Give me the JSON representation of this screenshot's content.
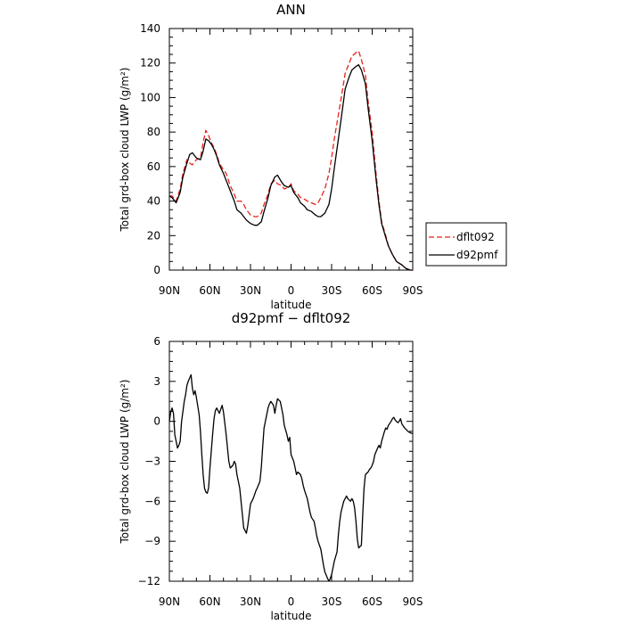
{
  "chart_data": [
    {
      "type": "line",
      "title": "ANN",
      "xlabel": "latitude",
      "ylabel": "Total grd-box cloud LWP (g/m²)",
      "xlim": [
        90,
        -90
      ],
      "ylim": [
        0,
        140
      ],
      "xticks": [
        90,
        60,
        30,
        0,
        -30,
        -60,
        -90
      ],
      "xtick_labels": [
        "90N",
        "60N",
        "30N",
        "0",
        "30S",
        "60S",
        "90S"
      ],
      "yticks": [
        0,
        20,
        40,
        60,
        80,
        100,
        120,
        140
      ],
      "ytick_labels": [
        "0",
        "20",
        "40",
        "60",
        "80",
        "100",
        "120",
        "140"
      ],
      "legend": "right",
      "series": [
        {
          "name": "dflt092",
          "color": "#e8201c",
          "dash": "dashed",
          "x": [
            90,
            88,
            85,
            82,
            80,
            77,
            75,
            73,
            70,
            67,
            65,
            63,
            61,
            59,
            57,
            55,
            53,
            50,
            48,
            45,
            42,
            40,
            37,
            35,
            33,
            30,
            27,
            25,
            22,
            20,
            17,
            15,
            12,
            10,
            7,
            5,
            2,
            0,
            -2,
            -5,
            -7,
            -10,
            -12,
            -15,
            -18,
            -20,
            -22,
            -25,
            -28,
            -30,
            -32,
            -35,
            -38,
            -40,
            -43,
            -45,
            -48,
            -50,
            -52,
            -55,
            -57,
            -60,
            -63,
            -65,
            -67,
            -70,
            -72,
            -75,
            -78,
            -80,
            -82,
            -85,
            -88,
            -90
          ],
          "y": [
            43,
            43,
            40,
            47,
            56,
            64,
            62,
            61,
            64,
            65,
            74,
            81,
            78,
            74,
            71,
            67,
            62,
            58,
            56,
            49,
            44,
            40,
            40,
            38,
            35,
            32,
            31,
            31,
            33,
            38,
            44,
            50,
            52,
            50,
            49,
            47,
            48,
            50,
            46,
            44,
            42,
            41,
            40,
            39,
            38,
            39,
            42,
            47,
            56,
            65,
            76,
            90,
            104,
            114,
            120,
            124,
            126,
            127,
            122,
            113,
            98,
            80,
            55,
            40,
            28,
            20,
            14,
            9,
            5,
            4,
            3,
            1,
            0,
            0
          ]
        },
        {
          "name": "d92pmf",
          "color": "#000000",
          "dash": "solid",
          "x": [
            90,
            88,
            85,
            82,
            80,
            77,
            75,
            73,
            70,
            67,
            65,
            63,
            61,
            59,
            57,
            55,
            53,
            50,
            48,
            45,
            42,
            40,
            37,
            35,
            33,
            30,
            27,
            25,
            22,
            20,
            17,
            15,
            12,
            10,
            7,
            5,
            2,
            0,
            -2,
            -5,
            -7,
            -10,
            -12,
            -15,
            -18,
            -20,
            -22,
            -25,
            -28,
            -30,
            -32,
            -35,
            -38,
            -40,
            -43,
            -45,
            -48,
            -50,
            -52,
            -55,
            -57,
            -60,
            -63,
            -65,
            -67,
            -70,
            -72,
            -75,
            -78,
            -80,
            -82,
            -85,
            -88,
            -90
          ],
          "y": [
            43,
            42,
            39,
            45,
            54,
            62,
            67,
            68,
            65,
            64,
            69,
            76,
            75,
            73,
            70,
            66,
            61,
            56,
            52,
            46,
            40,
            35,
            33,
            31,
            29,
            27,
            26,
            26,
            28,
            34,
            42,
            49,
            54,
            55,
            51,
            49,
            48,
            49,
            45,
            42,
            39,
            37,
            35,
            34,
            32,
            31,
            31,
            33,
            38,
            47,
            59,
            76,
            93,
            105,
            112,
            116,
            118,
            119,
            116,
            108,
            94,
            75,
            52,
            38,
            27,
            19,
            14,
            9,
            5,
            4,
            3,
            1,
            0,
            0
          ]
        }
      ]
    },
    {
      "type": "line",
      "title": "d92pmf − dflt092",
      "xlabel": "latitude",
      "ylabel": "Total grd-box cloud LWP (g/m²)",
      "xlim": [
        90,
        -90
      ],
      "ylim": [
        -12,
        6
      ],
      "xticks": [
        90,
        60,
        30,
        0,
        -30,
        -60,
        -90
      ],
      "xtick_labels": [
        "90N",
        "60N",
        "30N",
        "0",
        "30S",
        "60S",
        "90S"
      ],
      "yticks": [
        -12,
        -9,
        -6,
        -3,
        0,
        3,
        6
      ],
      "ytick_labels": [
        "−12",
        "−9",
        "−6",
        "−3",
        "0",
        "3",
        "6"
      ],
      "series": [
        {
          "color": "#000000",
          "dash": "solid",
          "x": [
            90,
            89,
            88,
            87,
            86,
            84,
            83,
            82,
            81,
            79,
            78,
            77,
            76,
            74,
            73,
            72,
            71,
            70,
            68,
            67,
            66,
            65,
            64,
            63,
            62,
            61,
            60,
            58,
            57,
            56,
            55,
            53,
            52,
            51,
            50,
            48,
            47,
            46,
            45,
            43,
            42,
            41,
            40,
            38,
            37,
            36,
            35,
            33,
            32,
            31,
            30,
            28,
            27,
            26,
            25,
            23,
            22,
            21,
            20,
            18,
            17,
            16,
            15,
            13,
            12,
            11,
            10,
            8,
            7,
            6,
            5,
            3,
            2,
            1,
            0,
            -2,
            -3,
            -4,
            -5,
            -7,
            -8,
            -9,
            -10,
            -12,
            -13,
            -14,
            -15,
            -17,
            -18,
            -19,
            -20,
            -22,
            -23,
            -24,
            -25,
            -27,
            -28,
            -29,
            -30,
            -31,
            -32,
            -34,
            -35,
            -36,
            -37,
            -39,
            -40,
            -41,
            -42,
            -44,
            -45,
            -46,
            -47,
            -48,
            -49,
            -50,
            -52,
            -53,
            -54,
            -55,
            -57,
            -58,
            -59,
            -60,
            -61,
            -62,
            -64,
            -65,
            -66,
            -67,
            -69,
            -70,
            -71,
            -72,
            -74,
            -75,
            -76,
            -77,
            -79,
            -80,
            -81,
            -82,
            -84,
            -85,
            -86,
            -87,
            -89,
            -90
          ],
          "y": [
            0.0,
            0.7,
            1.0,
            0.6,
            -1.0,
            -2.0,
            -1.8,
            -1.5,
            0.0,
            1.5,
            2.0,
            2.7,
            3.0,
            3.5,
            2.5,
            2.0,
            2.3,
            1.8,
            0.5,
            -0.8,
            -2.5,
            -4.0,
            -5.0,
            -5.3,
            -5.4,
            -5.0,
            -3.5,
            -1.0,
            0.2,
            0.8,
            1.0,
            0.6,
            0.9,
            1.2,
            0.7,
            -1.0,
            -2.0,
            -3.0,
            -3.5,
            -3.3,
            -3.0,
            -3.2,
            -4.0,
            -5.0,
            -6.0,
            -7.0,
            -8.0,
            -8.4,
            -7.8,
            -7.0,
            -6.2,
            -5.8,
            -5.5,
            -5.2,
            -5.0,
            -4.5,
            -3.5,
            -2.0,
            -0.5,
            0.5,
            1.0,
            1.3,
            1.5,
            1.2,
            0.6,
            1.2,
            1.7,
            1.5,
            1.0,
            0.5,
            -0.3,
            -1.0,
            -1.5,
            -1.2,
            -2.5,
            -3.0,
            -3.5,
            -4.0,
            -3.8,
            -4.0,
            -4.3,
            -4.8,
            -5.2,
            -5.8,
            -6.3,
            -6.8,
            -7.2,
            -7.5,
            -8.0,
            -8.6,
            -9.0,
            -9.6,
            -10.2,
            -10.8,
            -11.3,
            -11.8,
            -12.0,
            -11.8,
            -11.5,
            -11.0,
            -10.5,
            -9.8,
            -8.5,
            -7.5,
            -6.8,
            -6.0,
            -5.8,
            -5.6,
            -5.8,
            -6.0,
            -5.8,
            -6.0,
            -6.5,
            -7.5,
            -8.8,
            -9.5,
            -9.3,
            -7.0,
            -5.0,
            -4.0,
            -3.8,
            -3.6,
            -3.5,
            -3.3,
            -3.0,
            -2.5,
            -2.0,
            -1.8,
            -2.0,
            -1.5,
            -0.8,
            -0.5,
            -0.6,
            -0.3,
            0.0,
            0.2,
            0.3,
            0.1,
            -0.1,
            0.0,
            0.2,
            -0.2,
            -0.5,
            -0.6,
            -0.7,
            -0.8,
            -0.9,
            -0.9
          ]
        }
      ]
    }
  ]
}
